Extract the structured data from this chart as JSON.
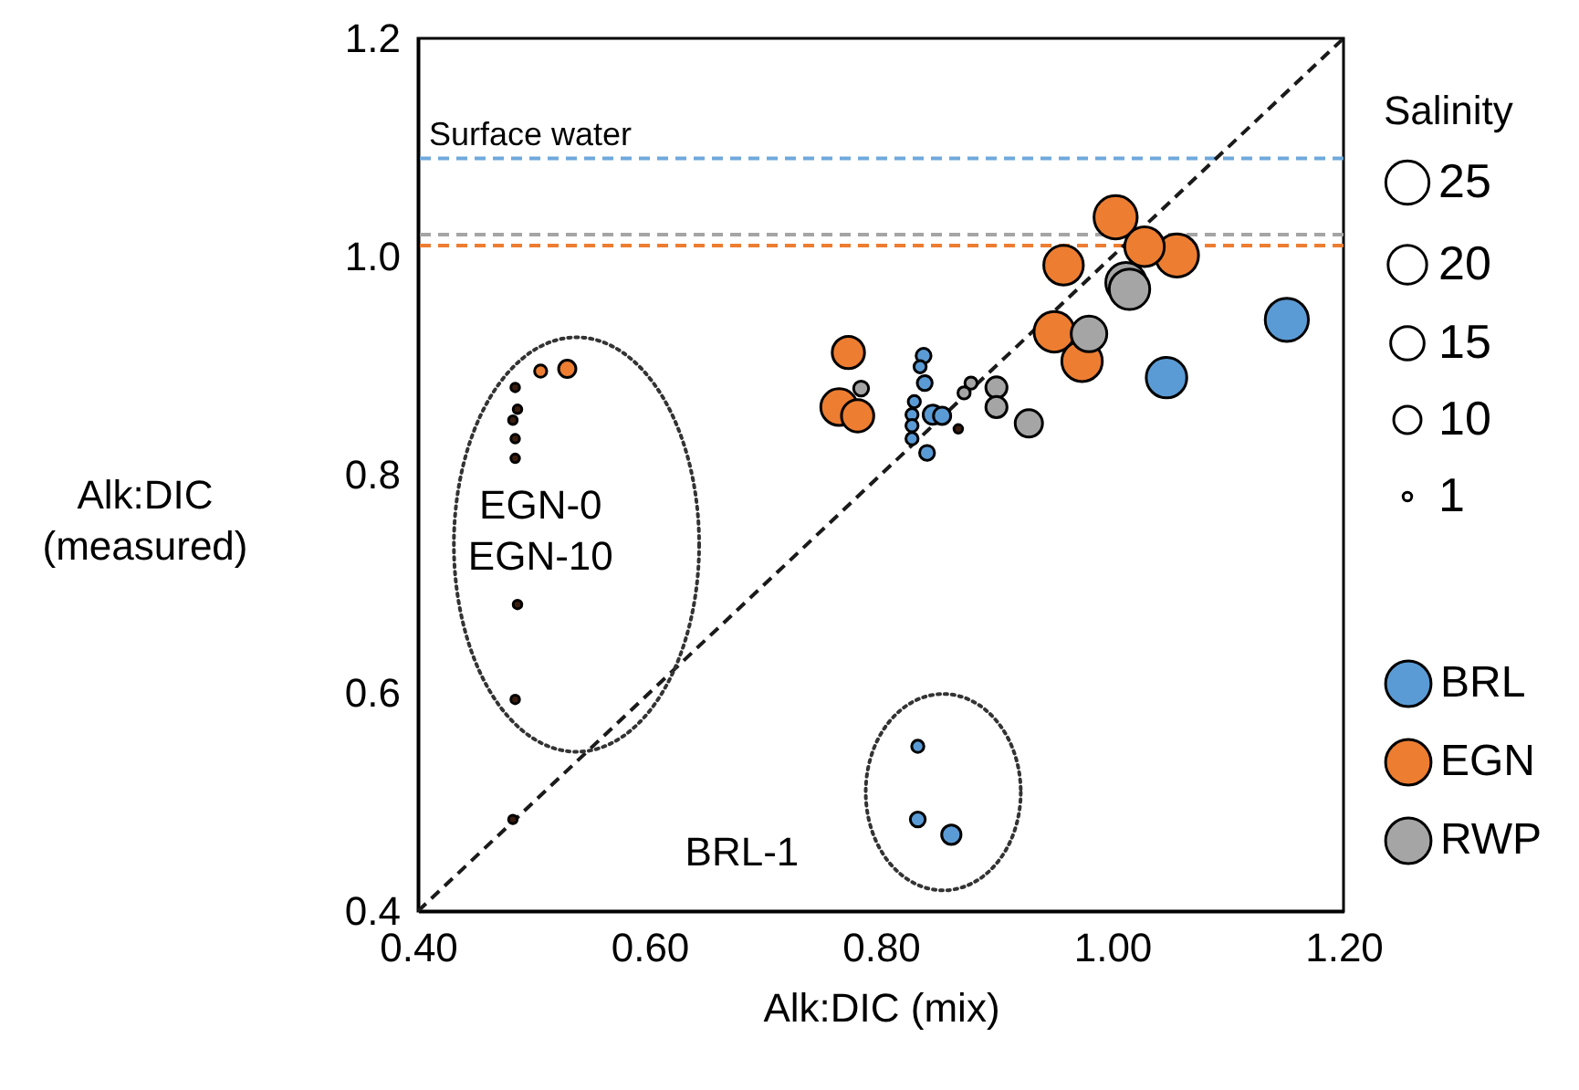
{
  "chart_data": {
    "type": "bubble",
    "xlabel": "Alk:DIC (mix)",
    "ylabel": "Alk:DIC (measured)",
    "legend_title": "Salinity",
    "legend": "right",
    "xlim": [
      0.4,
      1.2
    ],
    "xticks": [
      {
        "value": 0.4,
        "label": "0.40"
      },
      {
        "value": 0.6,
        "label": "0.60"
      },
      {
        "value": 0.8,
        "label": "0.80"
      },
      {
        "value": 1.0,
        "label": "1.00"
      },
      {
        "value": 1.2,
        "label": "1.20"
      }
    ],
    "ylim": [
      0.4,
      1.2
    ],
    "yticks": [
      0.4,
      0.6,
      0.8,
      {
        "value": 1.0,
        "label": "1.0"
      },
      1.2
    ],
    "size_legend": [
      25,
      20,
      15,
      10,
      1
    ],
    "series": [
      {
        "type": "line",
        "color": "#1a1a1a",
        "line_style": "dashed",
        "x": [
          0.4,
          1.2
        ],
        "values": [
          0.4,
          1.2
        ]
      },
      {
        "name": "BRL",
        "color": "#5b9bd5",
        "x": [
          1.151,
          1.047,
          0.837,
          0.834,
          0.838,
          0.829,
          0.827,
          0.827,
          0.827,
          0.84,
          0.845,
          0.853,
          0.832,
          0.832,
          0.861
        ],
        "values": [
          0.942,
          0.889,
          0.909,
          0.899,
          0.884,
          0.867,
          0.855,
          0.845,
          0.833,
          0.82,
          0.855,
          0.854,
          0.551,
          0.484,
          0.47
        ],
        "sizes": [
          25,
          22,
          3,
          2,
          3,
          2,
          2,
          2,
          2,
          3,
          5,
          4,
          2,
          3,
          5
        ]
      },
      {
        "name": "EGN",
        "color": "#ed7d31",
        "x": [
          1.003,
          1.056,
          1.028,
          0.958,
          0.95,
          0.974,
          0.764,
          0.772,
          0.78,
          0.506,
          0.529
        ],
        "values": [
          1.036,
          1.001,
          1.009,
          0.992,
          0.931,
          0.904,
          0.862,
          0.912,
          0.854,
          0.895,
          0.897
        ],
        "sizes": [
          25,
          25,
          21,
          21,
          22,
          22,
          18,
          14,
          14,
          2,
          4
        ]
      },
      {
        "name": "RWP",
        "color": "#a5a5a5",
        "x": [
          1.012,
          1.015,
          0.98,
          0.928,
          0.9,
          0.9,
          0.783,
          0.878,
          0.872
        ],
        "values": [
          0.976,
          0.97,
          0.929,
          0.847,
          0.88,
          0.862,
          0.879,
          0.884,
          0.875
        ],
        "sizes": [
          22,
          22,
          17,
          10,
          6,
          6,
          3,
          2,
          2
        ]
      },
      {
        "color": "#3b1e10",
        "x": [
          0.484,
          0.486,
          0.482,
          0.484,
          0.484,
          0.486,
          0.484,
          0.482,
          0.867
        ],
        "values": [
          0.88,
          0.86,
          0.85,
          0.833,
          0.815,
          0.681,
          0.594,
          0.484,
          0.842
        ],
        "sizes": [
          1,
          1,
          1,
          1,
          1,
          1,
          1,
          1,
          1
        ]
      }
    ],
    "ref_lines": [
      {
        "axis": "y",
        "value": 1.09,
        "label": "Surface water",
        "color": "#6fa8dc",
        "line_style": "dashed"
      },
      {
        "axis": "y",
        "value": 1.02,
        "color": "#a5a5a5",
        "line_style": "dashed"
      },
      {
        "axis": "y",
        "value": 1.01,
        "color": "#ed7d31",
        "line_style": "dashed"
      }
    ],
    "annotations": [
      "EGN-0\nEGN-10",
      "BRL-1"
    ]
  }
}
